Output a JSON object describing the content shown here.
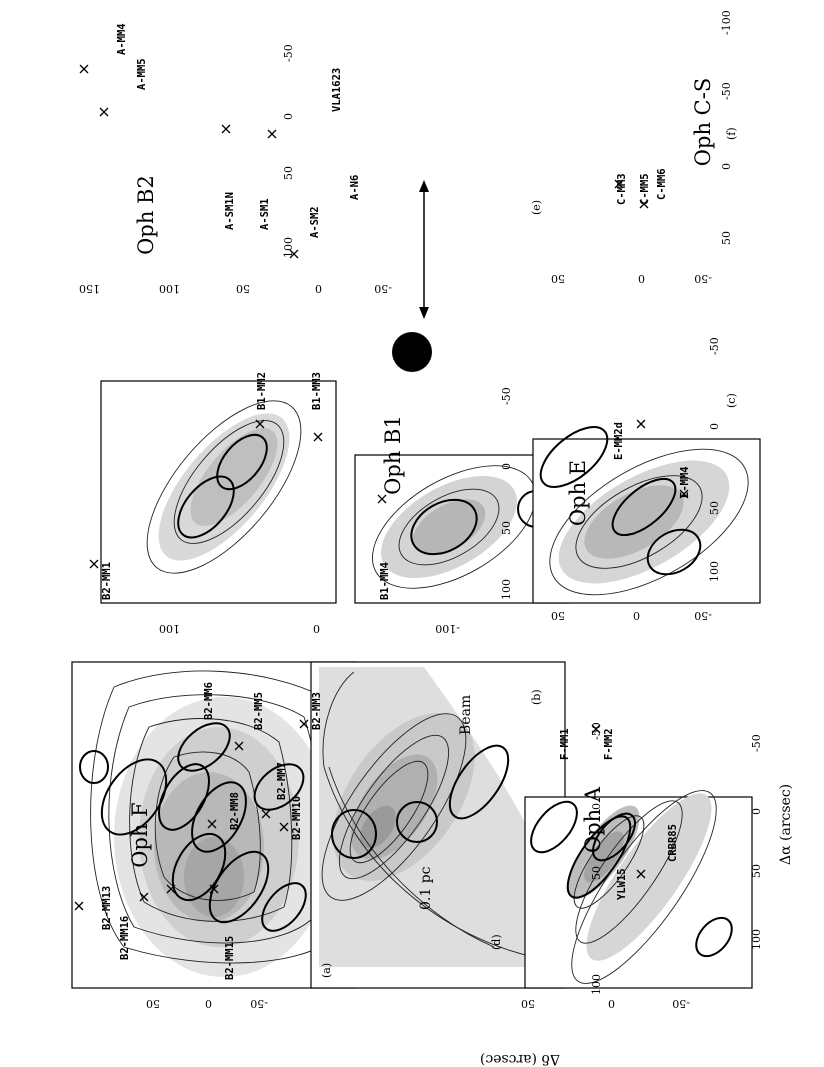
{
  "figure": {
    "orientation_note": "",
    "panels": [
      {
        "id": "a",
        "panel_label": "(a)",
        "title": "Oph B2",
        "sources": [
          "B2-MM13",
          "B2-MM16",
          "B2-MM15",
          "B2-MM6",
          "B2-MM5",
          "B2-MM8",
          "B2-MM7",
          "B2-MM10",
          "B2-MM3"
        ],
        "ra_ticks": [
          "100",
          "50",
          "0",
          "-50"
        ],
        "dec_ticks": [
          "50",
          "0",
          "-50"
        ]
      },
      {
        "id": "b",
        "panel_label": "(b)",
        "title": "Oph B1",
        "sources": [
          "B2-MM1",
          "B1-MM2",
          "B1-MM3",
          "B1-MM4"
        ],
        "ra_ticks": [
          "100",
          "50",
          "0",
          "-50"
        ],
        "dec_ticks": [
          "100",
          "0",
          "-100"
        ]
      },
      {
        "id": "c",
        "panel_label": "(c)",
        "title": "Oph A",
        "sources": [
          "A-MM4",
          "A-MM5",
          "VLA1623",
          "A-SM1N",
          "A-SM1",
          "A-SM2",
          "A-N6"
        ],
        "ra_ticks": [
          "100",
          "50",
          "0",
          "-50"
        ],
        "dec_ticks": [
          "150",
          "100",
          "50",
          "0",
          "-50"
        ]
      },
      {
        "id": "d",
        "panel_label": "(d)",
        "title": "Oph F",
        "sources": [
          "F-MM1",
          "F-MM2",
          "YLW15",
          "CRBR85"
        ],
        "ra_ticks": [
          "100",
          "50",
          "0",
          "-50"
        ],
        "dec_ticks": [
          "50",
          "0",
          "-50"
        ]
      },
      {
        "id": "e",
        "panel_label": "(e)",
        "title": "Oph E",
        "sources": [
          "E-MM2d",
          "E-MM4"
        ],
        "ra_ticks": [
          "100",
          "50",
          "0",
          "-50"
        ],
        "dec_ticks": [
          "50",
          "0",
          "-50"
        ]
      },
      {
        "id": "f",
        "panel_label": "(f)",
        "title": "Oph C-S",
        "sources": [
          "C-MM3",
          "C-MM5",
          "C-MM6"
        ],
        "ra_ticks": [
          "50",
          "0",
          "-50",
          "-100"
        ],
        "dec_ticks": [
          "50",
          "0",
          "-50"
        ]
      }
    ],
    "scalebar_label": "0.1 pc",
    "beam_label": "Beam",
    "x_axis_label": "Δα (arcsec)",
    "y_axis_label": "Δδ (arcsec)"
  }
}
